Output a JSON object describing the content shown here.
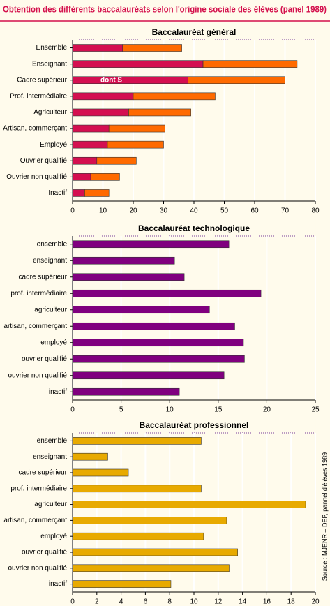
{
  "title": "Obtention des différents baccalauréats selon l'origine sociale des élèves (panel 1989)",
  "source": "Source : MJENR – DEP, pannel d'élèves 1989",
  "chart_data": [
    {
      "type": "bar",
      "orientation": "horizontal",
      "stacked": true,
      "title": "Baccalauréat général",
      "categories": [
        "Ensemble",
        "Enseignant",
        "Cadre supérieur",
        "Prof. intermédiaire",
        "Agriculteur",
        "Artisan, commerçant",
        "Employé",
        "Ouvrier qualifié",
        "Ouvrier non qualifié",
        "Inactif"
      ],
      "series": [
        {
          "name": "dont S",
          "color": "#d40f50",
          "values": [
            16.5,
            43,
            38,
            20,
            18.5,
            12,
            11.5,
            8,
            6,
            4
          ]
        },
        {
          "color": "#ff6a00",
          "values": [
            19.5,
            31,
            32,
            27,
            20.5,
            18.5,
            18.5,
            13,
            9.5,
            8
          ]
        }
      ],
      "xlim": [
        0,
        80
      ],
      "xticks": [
        0,
        10,
        20,
        30,
        40,
        50,
        60,
        70,
        80
      ],
      "grid": true
    },
    {
      "type": "bar",
      "orientation": "horizontal",
      "title": "Baccalauréat technologique",
      "categories": [
        "ensemble",
        "enseignant",
        "cadre supérieur",
        "prof. intermédiaire",
        "agriculteur",
        "artisan, commerçant",
        "employé",
        "ouvrier qualifié",
        "ouvrier non qualifié",
        "inactif"
      ],
      "series": [
        {
          "color": "#80007f",
          "values": [
            16.1,
            10.5,
            11.5,
            19.4,
            14.1,
            16.7,
            17.6,
            17.7,
            15.6,
            11.0
          ]
        }
      ],
      "xlim": [
        0,
        25
      ],
      "xticks": [
        0,
        5,
        10,
        15,
        20,
        25
      ],
      "grid": true
    },
    {
      "type": "bar",
      "orientation": "horizontal",
      "title": "Baccalauréat professionnel",
      "categories": [
        "ensemble",
        "enseignant",
        "cadre supérieur",
        "prof. intermédiaire",
        "agriculteur",
        "artisan, commerçant",
        "employé",
        "ouvrier qualifié",
        "ouvrier non qualifié",
        "inactif"
      ],
      "series": [
        {
          "color": "#e8aa00",
          "values": [
            10.6,
            2.9,
            4.6,
            10.6,
            19.2,
            12.7,
            10.8,
            13.6,
            12.9,
            8.1
          ]
        }
      ],
      "xlim": [
        0,
        20
      ],
      "xticks": [
        0,
        2,
        4,
        6,
        8,
        10,
        12,
        14,
        16,
        18,
        20
      ],
      "grid": true
    }
  ]
}
